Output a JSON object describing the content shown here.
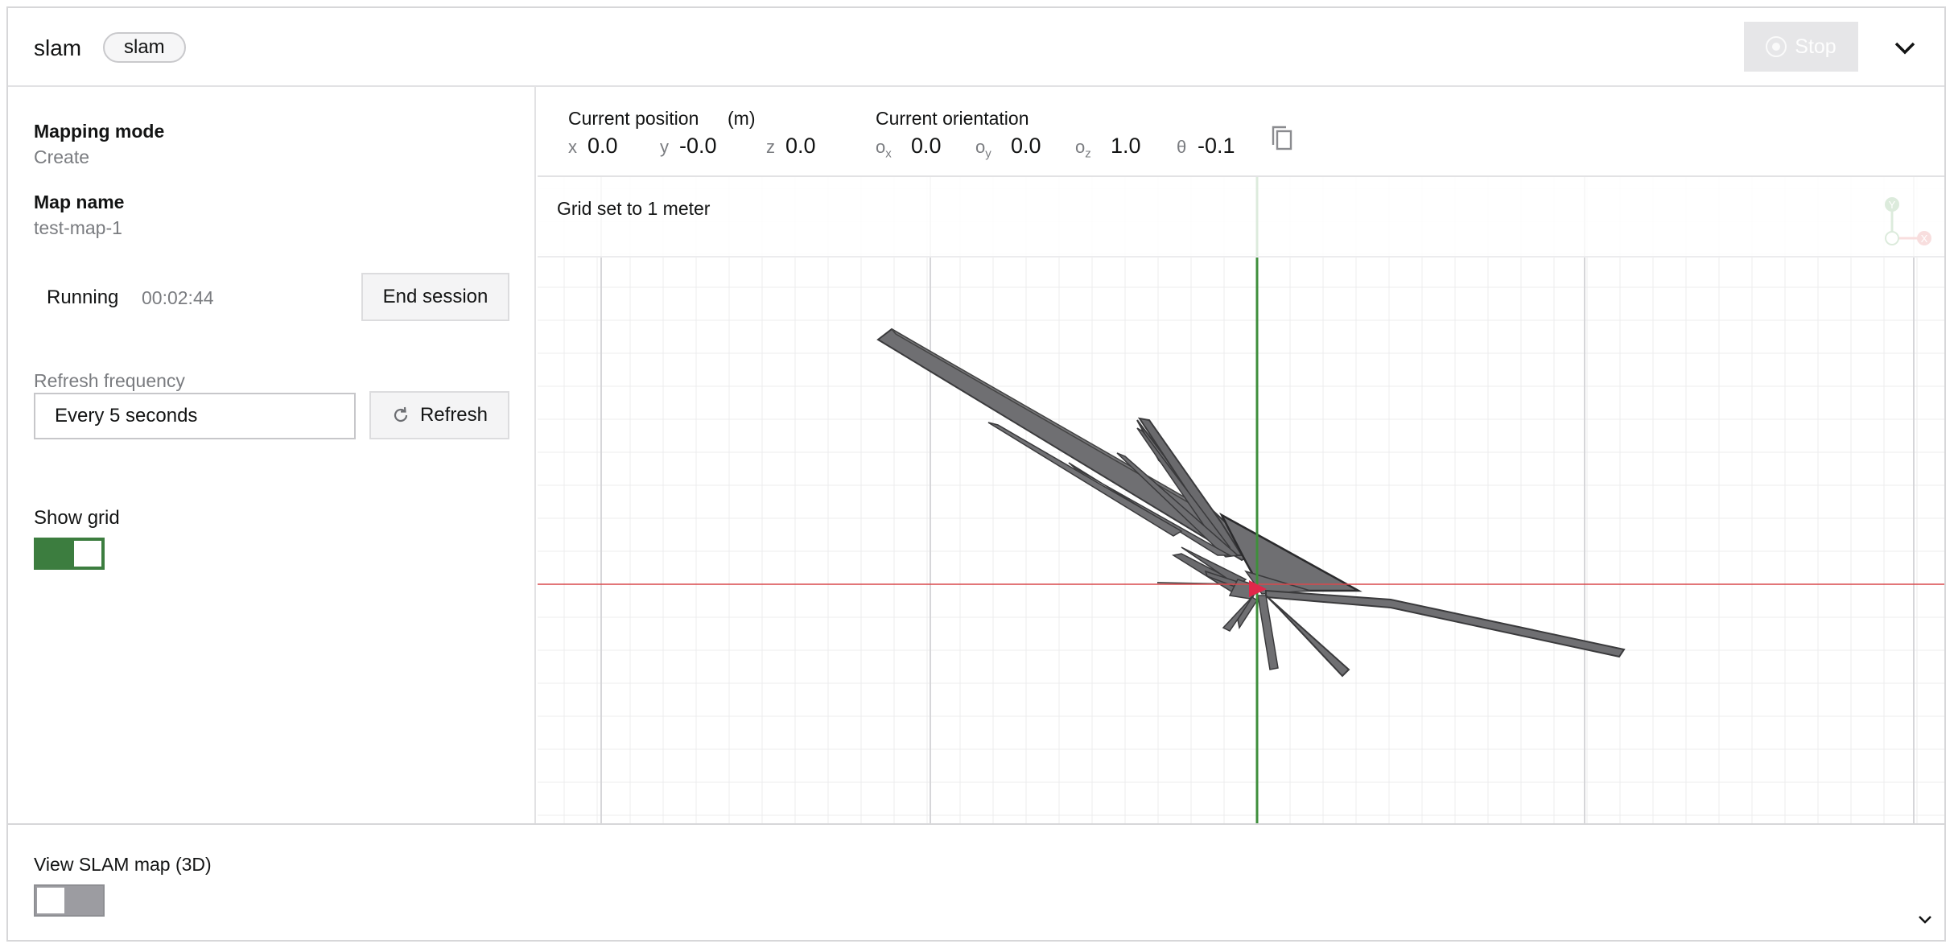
{
  "header": {
    "title": "slam",
    "chip": "slam",
    "stop_label": "Stop"
  },
  "left": {
    "mapping_mode_label": "Mapping mode",
    "mapping_mode_value": "Create",
    "map_name_label": "Map name",
    "map_name_value": "test-map-1",
    "status": "Running",
    "elapsed": "00:02:44",
    "end_session_label": "End session",
    "refresh_frequency_label": "Refresh frequency",
    "refresh_frequency_value": "Every 5 seconds",
    "refresh_label": "Refresh",
    "show_grid_label": "Show grid",
    "show_grid_on": true
  },
  "pose": {
    "position_label": "Current position",
    "position_unit": "(m)",
    "x_label": "x",
    "x": "0.0",
    "y_label": "y",
    "y": "-0.0",
    "z_label": "z",
    "z": "0.0",
    "orientation_label": "Current orientation",
    "ox_label": "o",
    "ox_sub": "x",
    "ox": "0.0",
    "oy_label": "o",
    "oy_sub": "y",
    "oy": "0.0",
    "oz_label": "o",
    "oz_sub": "z",
    "oz": "1.0",
    "theta_label": "θ",
    "theta": "-0.1"
  },
  "map": {
    "grid_note": "Grid set to 1 meter",
    "axis_y_label": "Y",
    "axis_x_label": "X",
    "colors": {
      "x_axis": "#d9484c",
      "y_axis": "#3f8f3c",
      "scan": "#6f6f72",
      "robot": "#e0284a"
    }
  },
  "bottom": {
    "view_3d_label": "View SLAM map (3D)",
    "view_3d_on": false
  }
}
